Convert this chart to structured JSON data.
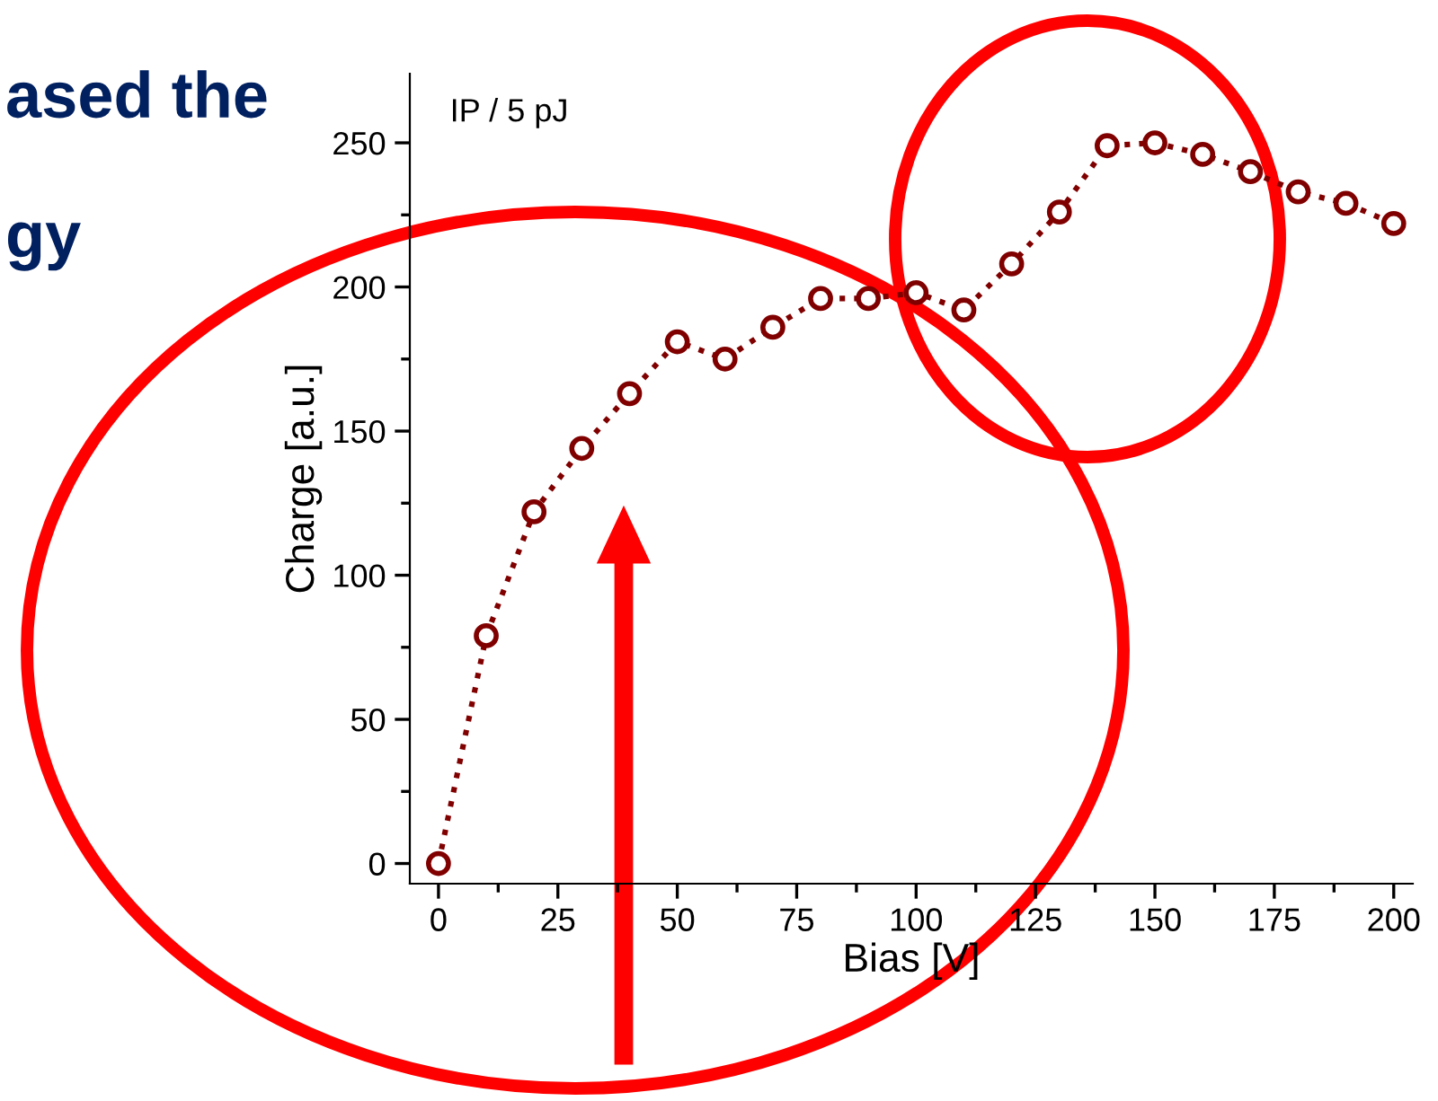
{
  "chart_data": {
    "type": "line",
    "xlabel": "Bias [V]",
    "ylabel": "Charge [a.u.]",
    "annotations": [
      {
        "text": "IP / 5 pJ"
      },
      {
        "text": "ased the"
      },
      {
        "text": "gy"
      }
    ],
    "x": [
      0,
      10,
      20,
      30,
      40,
      50,
      60,
      70,
      80,
      90,
      100,
      110,
      120,
      130,
      140,
      150,
      160,
      170,
      180,
      190,
      200
    ],
    "series": [
      {
        "color": "#800000",
        "values": [
          0,
          79,
          122,
          144,
          163,
          181,
          175,
          186,
          196,
          196,
          198,
          192,
          208,
          226,
          249,
          250,
          246,
          240,
          233,
          229,
          222
        ]
      }
    ],
    "marker": "circle",
    "line_style": "dotted",
    "grid": false,
    "legend": false,
    "xlim": [
      -6,
      204
    ],
    "ylim": [
      -7,
      274
    ],
    "xticks": [
      0,
      {
        "value": 12.5,
        "label": null
      },
      25,
      {
        "value": 37.5,
        "label": null
      },
      50,
      {
        "value": 62.5,
        "label": null
      },
      75,
      {
        "value": 87.5,
        "label": null
      },
      100,
      {
        "value": 112.5,
        "label": null
      },
      125,
      {
        "value": 137.5,
        "label": null
      },
      150,
      {
        "value": 162.5,
        "label": null
      },
      175,
      {
        "value": 187.5,
        "label": null
      },
      200
    ],
    "yticks": [
      0,
      {
        "value": 25,
        "label": null
      },
      50,
      {
        "value": 75,
        "label": null
      },
      100,
      {
        "value": 125,
        "label": null
      },
      150,
      {
        "value": 175,
        "label": null
      },
      200,
      {
        "value": 225,
        "label": null
      },
      250
    ]
  }
}
